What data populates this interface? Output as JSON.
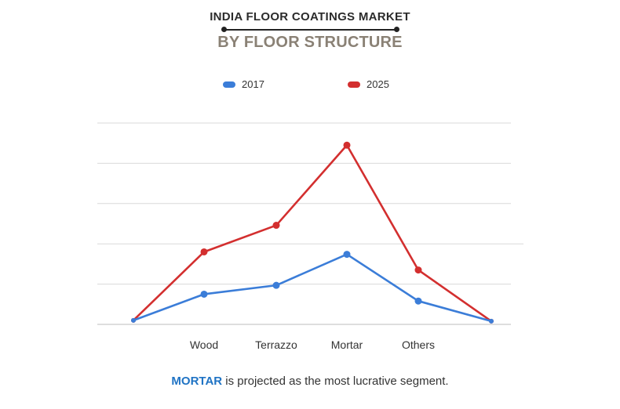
{
  "header": {
    "title": "INDIA FLOOR COATINGS MARKET",
    "subtitle": "BY FLOOR STRUCTURE"
  },
  "colors": {
    "series_2017": "#3b7dd8",
    "series_2025": "#d32f2f",
    "highlight": "#1f73c4"
  },
  "footer": {
    "highlight": "MORTAR",
    "text": " is projected as the most lucrative segment."
  },
  "chart_data": {
    "type": "line",
    "categories": [
      "",
      "Wood",
      "Terrazzo",
      "Mortar",
      "Others",
      ""
    ],
    "series": [
      {
        "name": "2017",
        "values": [
          0.1,
          0.75,
          0.97,
          1.74,
          0.58,
          0.08
        ]
      },
      {
        "name": "2025",
        "values": [
          0.1,
          1.8,
          2.46,
          4.45,
          1.35,
          0.08
        ]
      }
    ],
    "ylim": [
      0,
      5
    ],
    "grid": true,
    "legend": "top-center",
    "xlabel": "",
    "ylabel": ""
  }
}
